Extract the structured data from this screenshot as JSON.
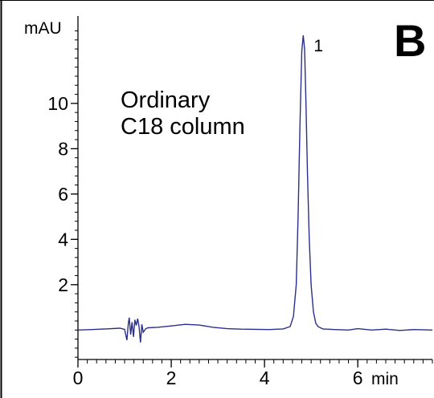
{
  "chart_data": {
    "type": "line",
    "panel_label": "B",
    "annotation": [
      "Ordinary",
      "C18 column"
    ],
    "xlabel": "min",
    "ylabel": "mAU",
    "xlim": [
      0,
      7.6
    ],
    "ylim": [
      -1.3,
      13.5
    ],
    "x_ticks": [
      0,
      2,
      4,
      6
    ],
    "y_ticks": [
      2,
      4,
      6,
      8,
      10
    ],
    "x_minor_step": 0.2,
    "y_minor_step": 0.4,
    "grid": false,
    "line_color": "#2b2f8c",
    "peaks": [
      {
        "label": "1",
        "x": 4.85,
        "y": 13.0
      }
    ],
    "series": [
      {
        "x": [
          0,
          0.3,
          0.6,
          0.9,
          1.0,
          1.05,
          1.08,
          1.1,
          1.13,
          1.16,
          1.19,
          1.22,
          1.25,
          1.28,
          1.31,
          1.34,
          1.37,
          1.4,
          1.45,
          1.5,
          1.7,
          2.0,
          2.3,
          2.6,
          2.9,
          3.2,
          3.5,
          3.8,
          4.1,
          4.4,
          4.55,
          4.62,
          4.68,
          4.72,
          4.76,
          4.8,
          4.83,
          4.86,
          4.89,
          4.92,
          4.96,
          5.0,
          5.05,
          5.1,
          5.15,
          5.25,
          5.5,
          5.8,
          6.0,
          6.3,
          6.6,
          6.9,
          7.2,
          7.6
        ],
        "y": [
          0.0,
          0.02,
          0.05,
          0.08,
          0.03,
          -0.45,
          0.3,
          0.55,
          -0.2,
          0.35,
          -0.3,
          0.45,
          0.2,
          0.5,
          0.15,
          -0.55,
          0.25,
          -0.1,
          0.05,
          0.1,
          0.12,
          0.18,
          0.25,
          0.22,
          0.12,
          0.06,
          0.04,
          0.03,
          0.02,
          0.05,
          0.15,
          0.6,
          2.0,
          5.0,
          9.0,
          12.3,
          13.0,
          12.4,
          10.0,
          7.0,
          4.0,
          2.0,
          0.8,
          0.3,
          0.15,
          0.05,
          0.02,
          0.0,
          0.06,
          0.0,
          0.04,
          -0.02,
          0.02,
          0.0
        ]
      }
    ]
  }
}
